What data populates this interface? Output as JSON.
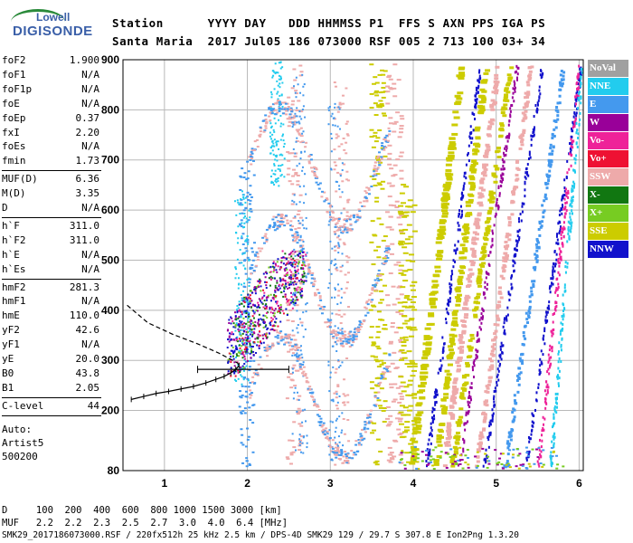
{
  "logo": {
    "line1": "Lowell",
    "line2": "DIGISONDE"
  },
  "header": {
    "labels": "Station      YYYY DAY   DDD HHMMSS P1  FFS S AXN PPS IGA PS",
    "values": "Santa Maria  2017 Jul05 186 073000 RSF 005 2 713 100 03+ 34"
  },
  "params": [
    {
      "k": "foF2",
      "v": "1.900"
    },
    {
      "k": "foF1",
      "v": "N/A"
    },
    {
      "k": "foF1p",
      "v": "N/A"
    },
    {
      "k": "foE",
      "v": "N/A"
    },
    {
      "k": "foEp",
      "v": "0.37"
    },
    {
      "k": "fxI",
      "v": "2.20"
    },
    {
      "k": "foEs",
      "v": "N/A"
    },
    {
      "k": "fmin",
      "v": "1.73"
    },
    {
      "k": "MUF(D)",
      "v": "6.36"
    },
    {
      "k": "M(D)",
      "v": "3.35"
    },
    {
      "k": "D",
      "v": "N/A"
    },
    {
      "k": "h`F",
      "v": "311.0"
    },
    {
      "k": "h`F2",
      "v": "311.0"
    },
    {
      "k": "h`E",
      "v": "N/A"
    },
    {
      "k": "h`Es",
      "v": "N/A"
    },
    {
      "k": "hmF2",
      "v": "281.3"
    },
    {
      "k": "hmF1",
      "v": "N/A"
    },
    {
      "k": "hmE",
      "v": "110.0"
    },
    {
      "k": "yF2",
      "v": "42.6"
    },
    {
      "k": "yF1",
      "v": "N/A"
    },
    {
      "k": "yE",
      "v": "20.0"
    },
    {
      "k": "B0",
      "v": "43.8"
    },
    {
      "k": "B1",
      "v": "2.05"
    },
    {
      "k": "C-level",
      "v": "44"
    }
  ],
  "auto": {
    "line1": "Auto:",
    "line2": "Artist5",
    "line3": "500200"
  },
  "legend": [
    {
      "label": "NoVal",
      "color": "#a0a0a0"
    },
    {
      "label": "NNE",
      "color": "#22ccee"
    },
    {
      "label": "E",
      "color": "#4499ee"
    },
    {
      "label": "W",
      "color": "#990099"
    },
    {
      "label": "Vo-",
      "color": "#ee2299"
    },
    {
      "label": "Vo+",
      "color": "#ee1133"
    },
    {
      "label": "SSW",
      "color": "#eeaaaa"
    },
    {
      "label": "X-",
      "color": "#117711"
    },
    {
      "label": "X+",
      "color": "#77cc22"
    },
    {
      "label": "SSE",
      "color": "#cccc00"
    },
    {
      "label": "NNW",
      "color": "#1111cc"
    }
  ],
  "bottom": {
    "d_row": "D     100  200  400  600  800 1000 1500 3000 [km]",
    "muf_row": "MUF   2.2  2.2  2.3  2.5  2.7  3.0  4.0  6.4 [MHz]",
    "footer": "SMK29_2017186073000.RSF / 220fx512h 25 kHz 2.5 km / DPS-4D SMK29 129 / 29.7 S 307.8 E Ion2Png 1.3.20"
  },
  "chart_data": {
    "type": "scatter",
    "xlabel": "",
    "ylabel": "",
    "xlim": [
      0.5,
      6.05
    ],
    "ylim": [
      80,
      900
    ],
    "xticks": [
      1,
      2,
      3,
      4,
      5,
      6
    ],
    "yticks": [
      80,
      200,
      300,
      400,
      500,
      600,
      700,
      800,
      900
    ],
    "grid": true,
    "profile_x": [
      0.55,
      0.8,
      1.1,
      1.4,
      1.65,
      1.8,
      1.88,
      1.9
    ],
    "profile_y": [
      410,
      375,
      352,
      333,
      315,
      302,
      295,
      290
    ],
    "trace_x": [
      0.6,
      0.75,
      0.9,
      1.05,
      1.2,
      1.35,
      1.5,
      1.62,
      1.72,
      1.8,
      1.86,
      1.9
    ],
    "trace_y": [
      222,
      228,
      234,
      238,
      243,
      248,
      255,
      262,
      268,
      275,
      282,
      290
    ],
    "error_bar": {
      "x": 2.0,
      "x_low": 1.4,
      "x_high": 2.5,
      "y": 282
    },
    "seed_legend_color_order": [
      "NNW",
      "W",
      "SSW",
      "SSE",
      "E",
      "NNE",
      "Vo-",
      "X+"
    ]
  }
}
